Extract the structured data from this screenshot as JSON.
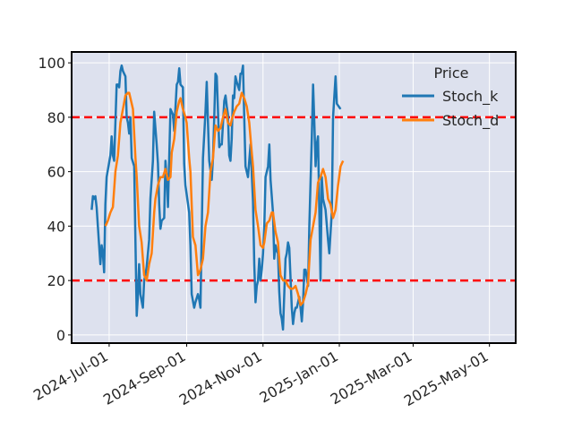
{
  "chart_data": {
    "type": "line",
    "title": "",
    "xlabel": "",
    "ylabel": "",
    "x_range": [
      "2024-06-01",
      "2025-05-22"
    ],
    "ylim": [
      -3,
      104
    ],
    "yticks": [
      0,
      20,
      40,
      60,
      80,
      100
    ],
    "xticks": [
      "2024-Jul-01",
      "2024-Sep-01",
      "2024-Nov-01",
      "2025-Jan-01",
      "2025-Mar-01",
      "2025-May-01"
    ],
    "xtick_dates": [
      "2024-07-01",
      "2024-09-01",
      "2024-11-01",
      "2025-01-01",
      "2025-03-01",
      "2025-05-01"
    ],
    "grid": true,
    "background": "#dde1ee",
    "legend": {
      "title": "Price",
      "placement": "top-right"
    },
    "reference_lines": [
      {
        "y": 80,
        "color": "#ff0000",
        "style": "dashed"
      },
      {
        "y": 20,
        "color": "#ff0000",
        "style": "dashed"
      }
    ],
    "series": [
      {
        "name": "Stoch_k",
        "color": "#1f77b4",
        "points": [
          [
            "2024-06-17",
            46
          ],
          [
            "2024-06-18",
            51
          ],
          [
            "2024-06-19",
            50
          ],
          [
            "2024-06-20",
            51
          ],
          [
            "2024-06-21",
            47
          ],
          [
            "2024-06-24",
            26
          ],
          [
            "2024-06-25",
            33
          ],
          [
            "2024-06-26",
            30
          ],
          [
            "2024-06-27",
            23
          ],
          [
            "2024-06-28",
            48
          ],
          [
            "2024-06-29",
            58
          ],
          [
            "2024-07-02",
            66
          ],
          [
            "2024-07-03",
            73
          ],
          [
            "2024-07-04",
            66
          ],
          [
            "2024-07-05",
            64
          ],
          [
            "2024-07-07",
            92
          ],
          [
            "2024-07-08",
            92
          ],
          [
            "2024-07-09",
            91
          ],
          [
            "2024-07-10",
            97
          ],
          [
            "2024-07-11",
            99
          ],
          [
            "2024-07-12",
            97
          ],
          [
            "2024-07-14",
            95
          ],
          [
            "2024-07-15",
            80
          ],
          [
            "2024-07-16",
            78
          ],
          [
            "2024-07-17",
            74
          ],
          [
            "2024-07-18",
            80
          ],
          [
            "2024-07-19",
            65
          ],
          [
            "2024-07-21",
            62
          ],
          [
            "2024-07-22",
            34
          ],
          [
            "2024-07-23",
            7
          ],
          [
            "2024-07-24",
            15
          ],
          [
            "2024-07-25",
            26
          ],
          [
            "2024-07-26",
            15
          ],
          [
            "2024-07-28",
            10
          ],
          [
            "2024-07-29",
            20
          ],
          [
            "2024-07-30",
            22
          ],
          [
            "2024-07-31",
            25
          ],
          [
            "2024-08-02",
            35
          ],
          [
            "2024-08-03",
            50
          ],
          [
            "2024-08-05",
            64
          ],
          [
            "2024-08-06",
            82
          ],
          [
            "2024-08-07",
            76
          ],
          [
            "2024-08-08",
            70
          ],
          [
            "2024-08-09",
            63
          ],
          [
            "2024-08-10",
            48
          ],
          [
            "2024-08-11",
            39
          ],
          [
            "2024-08-12",
            42
          ],
          [
            "2024-08-14",
            43
          ],
          [
            "2024-08-15",
            64
          ],
          [
            "2024-08-16",
            58
          ],
          [
            "2024-08-17",
            47
          ],
          [
            "2024-08-19",
            83
          ],
          [
            "2024-08-21",
            81
          ],
          [
            "2024-08-22",
            75
          ],
          [
            "2024-08-24",
            92
          ],
          [
            "2024-08-25",
            93
          ],
          [
            "2024-08-26",
            98
          ],
          [
            "2024-08-27",
            92
          ],
          [
            "2024-08-29",
            91
          ],
          [
            "2024-08-30",
            63
          ],
          [
            "2024-08-31",
            55
          ],
          [
            "2024-09-03",
            45
          ],
          [
            "2024-09-04",
            33
          ],
          [
            "2024-09-05",
            15
          ],
          [
            "2024-09-07",
            10
          ],
          [
            "2024-09-08",
            12
          ],
          [
            "2024-09-10",
            15
          ],
          [
            "2024-09-11",
            13
          ],
          [
            "2024-09-12",
            10
          ],
          [
            "2024-09-14",
            65
          ],
          [
            "2024-09-16",
            82
          ],
          [
            "2024-09-17",
            93
          ],
          [
            "2024-09-18",
            78
          ],
          [
            "2024-09-19",
            64
          ],
          [
            "2024-09-21",
            57
          ],
          [
            "2024-09-22",
            65
          ],
          [
            "2024-09-23",
            80
          ],
          [
            "2024-09-24",
            96
          ],
          [
            "2024-09-25",
            95
          ],
          [
            "2024-09-27",
            69
          ],
          [
            "2024-09-28",
            70
          ],
          [
            "2024-09-29",
            70
          ],
          [
            "2024-10-01",
            86
          ],
          [
            "2024-10-02",
            88
          ],
          [
            "2024-10-03",
            84
          ],
          [
            "2024-10-04",
            81
          ],
          [
            "2024-10-05",
            66
          ],
          [
            "2024-10-06",
            64
          ],
          [
            "2024-10-07",
            72
          ],
          [
            "2024-10-08",
            88
          ],
          [
            "2024-10-09",
            87
          ],
          [
            "2024-10-10",
            95
          ],
          [
            "2024-10-11",
            93
          ],
          [
            "2024-10-13",
            90
          ],
          [
            "2024-10-14",
            96
          ],
          [
            "2024-10-15",
            96
          ],
          [
            "2024-10-16",
            99
          ],
          [
            "2024-10-17",
            80
          ],
          [
            "2024-10-18",
            62
          ],
          [
            "2024-10-20",
            58
          ],
          [
            "2024-10-22",
            70
          ],
          [
            "2024-10-24",
            49
          ],
          [
            "2024-10-25",
            26
          ],
          [
            "2024-10-26",
            12
          ],
          [
            "2024-10-27",
            18
          ],
          [
            "2024-10-28",
            20
          ],
          [
            "2024-10-29",
            28
          ],
          [
            "2024-10-30",
            20
          ],
          [
            "2024-10-31",
            24
          ],
          [
            "2024-11-01",
            30
          ],
          [
            "2024-11-02",
            40
          ],
          [
            "2024-11-03",
            58
          ],
          [
            "2024-11-05",
            62
          ],
          [
            "2024-11-06",
            70
          ],
          [
            "2024-11-07",
            57
          ],
          [
            "2024-11-09",
            45
          ],
          [
            "2024-11-10",
            28
          ],
          [
            "2024-11-11",
            33
          ],
          [
            "2024-11-12",
            31
          ],
          [
            "2024-11-13",
            30
          ],
          [
            "2024-11-14",
            16
          ],
          [
            "2024-11-15",
            8
          ],
          [
            "2024-11-16",
            6
          ],
          [
            "2024-11-17",
            2
          ],
          [
            "2024-11-18",
            15
          ],
          [
            "2024-11-19",
            28
          ],
          [
            "2024-11-20",
            30
          ],
          [
            "2024-11-21",
            34
          ],
          [
            "2024-11-22",
            32
          ],
          [
            "2024-11-24",
            10
          ],
          [
            "2024-11-25",
            4
          ],
          [
            "2024-11-26",
            8
          ],
          [
            "2024-11-27",
            10
          ],
          [
            "2024-11-28",
            10
          ],
          [
            "2024-11-30",
            14
          ],
          [
            "2024-12-01",
            10
          ],
          [
            "2024-12-02",
            5
          ],
          [
            "2024-12-03",
            12
          ],
          [
            "2024-12-04",
            24
          ],
          [
            "2024-12-05",
            24
          ],
          [
            "2024-12-06",
            21
          ],
          [
            "2024-12-07",
            18
          ],
          [
            "2024-12-08",
            40
          ],
          [
            "2024-12-10",
            73
          ],
          [
            "2024-12-11",
            92
          ],
          [
            "2024-12-12",
            78
          ],
          [
            "2024-12-13",
            62
          ],
          [
            "2024-12-14",
            70
          ],
          [
            "2024-12-15",
            73
          ],
          [
            "2024-12-17",
            20
          ],
          [
            "2024-12-18",
            58
          ],
          [
            "2024-12-19",
            50
          ],
          [
            "2024-12-21",
            46
          ],
          [
            "2024-12-23",
            35
          ],
          [
            "2024-12-24",
            30
          ],
          [
            "2024-12-26",
            45
          ],
          [
            "2024-12-27",
            80
          ],
          [
            "2024-12-29",
            95
          ],
          [
            "2024-12-30",
            85
          ],
          [
            "2025-01-02",
            83
          ]
        ]
      },
      {
        "name": "Stoch_d",
        "color": "#ff7f0e",
        "points": [
          [
            "2024-06-28",
            40
          ],
          [
            "2024-06-30",
            42
          ],
          [
            "2024-07-02",
            45
          ],
          [
            "2024-07-04",
            47
          ],
          [
            "2024-07-06",
            60
          ],
          [
            "2024-07-08",
            66
          ],
          [
            "2024-07-10",
            78
          ],
          [
            "2024-07-12",
            83
          ],
          [
            "2024-07-14",
            88
          ],
          [
            "2024-07-16",
            89
          ],
          [
            "2024-07-17",
            89
          ],
          [
            "2024-07-19",
            85
          ],
          [
            "2024-07-20",
            83
          ],
          [
            "2024-07-22",
            65
          ],
          [
            "2024-07-23",
            58
          ],
          [
            "2024-07-25",
            40
          ],
          [
            "2024-07-27",
            34
          ],
          [
            "2024-07-29",
            22
          ],
          [
            "2024-07-31",
            20
          ],
          [
            "2024-08-02",
            26
          ],
          [
            "2024-08-04",
            30
          ],
          [
            "2024-08-06",
            45
          ],
          [
            "2024-08-07",
            50
          ],
          [
            "2024-08-09",
            55
          ],
          [
            "2024-08-11",
            58
          ],
          [
            "2024-08-13",
            58
          ],
          [
            "2024-08-15",
            61
          ],
          [
            "2024-08-17",
            57
          ],
          [
            "2024-08-19",
            58
          ],
          [
            "2024-08-20",
            67
          ],
          [
            "2024-08-22",
            72
          ],
          [
            "2024-08-24",
            82
          ],
          [
            "2024-08-26",
            86
          ],
          [
            "2024-08-27",
            87
          ],
          [
            "2024-08-29",
            83
          ],
          [
            "2024-08-31",
            80
          ],
          [
            "2024-09-01",
            78
          ],
          [
            "2024-09-03",
            65
          ],
          [
            "2024-09-04",
            60
          ],
          [
            "2024-09-06",
            36
          ],
          [
            "2024-09-08",
            33
          ],
          [
            "2024-09-10",
            22
          ],
          [
            "2024-09-12",
            24
          ],
          [
            "2024-09-14",
            28
          ],
          [
            "2024-09-16",
            40
          ],
          [
            "2024-09-18",
            45
          ],
          [
            "2024-09-20",
            60
          ],
          [
            "2024-09-22",
            65
          ],
          [
            "2024-09-24",
            77
          ],
          [
            "2024-09-26",
            75
          ],
          [
            "2024-09-28",
            76
          ],
          [
            "2024-09-30",
            80
          ],
          [
            "2024-10-02",
            83
          ],
          [
            "2024-10-04",
            78
          ],
          [
            "2024-10-06",
            77
          ],
          [
            "2024-10-07",
            79
          ],
          [
            "2024-10-09",
            82
          ],
          [
            "2024-10-11",
            84
          ],
          [
            "2024-10-13",
            85
          ],
          [
            "2024-10-15",
            89
          ],
          [
            "2024-10-17",
            87
          ],
          [
            "2024-10-19",
            84
          ],
          [
            "2024-10-21",
            78
          ],
          [
            "2024-10-23",
            67
          ],
          [
            "2024-10-24",
            62
          ],
          [
            "2024-10-26",
            46
          ],
          [
            "2024-10-28",
            40
          ],
          [
            "2024-10-30",
            33
          ],
          [
            "2024-11-01",
            32
          ],
          [
            "2024-11-02",
            34
          ],
          [
            "2024-11-04",
            41
          ],
          [
            "2024-11-06",
            42
          ],
          [
            "2024-11-08",
            45
          ],
          [
            "2024-11-09",
            45
          ],
          [
            "2024-11-11",
            38
          ],
          [
            "2024-11-13",
            34
          ],
          [
            "2024-11-15",
            22
          ],
          [
            "2024-11-17",
            20
          ],
          [
            "2024-11-19",
            20
          ],
          [
            "2024-11-21",
            18
          ],
          [
            "2024-11-23",
            17
          ],
          [
            "2024-11-25",
            17
          ],
          [
            "2024-11-27",
            18
          ],
          [
            "2024-11-29",
            15
          ],
          [
            "2024-12-01",
            11
          ],
          [
            "2024-12-03",
            12
          ],
          [
            "2024-12-05",
            15
          ],
          [
            "2024-12-07",
            19
          ],
          [
            "2024-12-09",
            35
          ],
          [
            "2024-12-11",
            40
          ],
          [
            "2024-12-13",
            45
          ],
          [
            "2024-12-15",
            56
          ],
          [
            "2024-12-17",
            58
          ],
          [
            "2024-12-19",
            61
          ],
          [
            "2024-12-21",
            58
          ],
          [
            "2024-12-23",
            50
          ],
          [
            "2024-12-25",
            48
          ],
          [
            "2024-12-27",
            43
          ],
          [
            "2024-12-29",
            46
          ],
          [
            "2024-12-31",
            55
          ],
          [
            "2025-01-02",
            62
          ],
          [
            "2025-01-04",
            64
          ]
        ]
      }
    ]
  }
}
